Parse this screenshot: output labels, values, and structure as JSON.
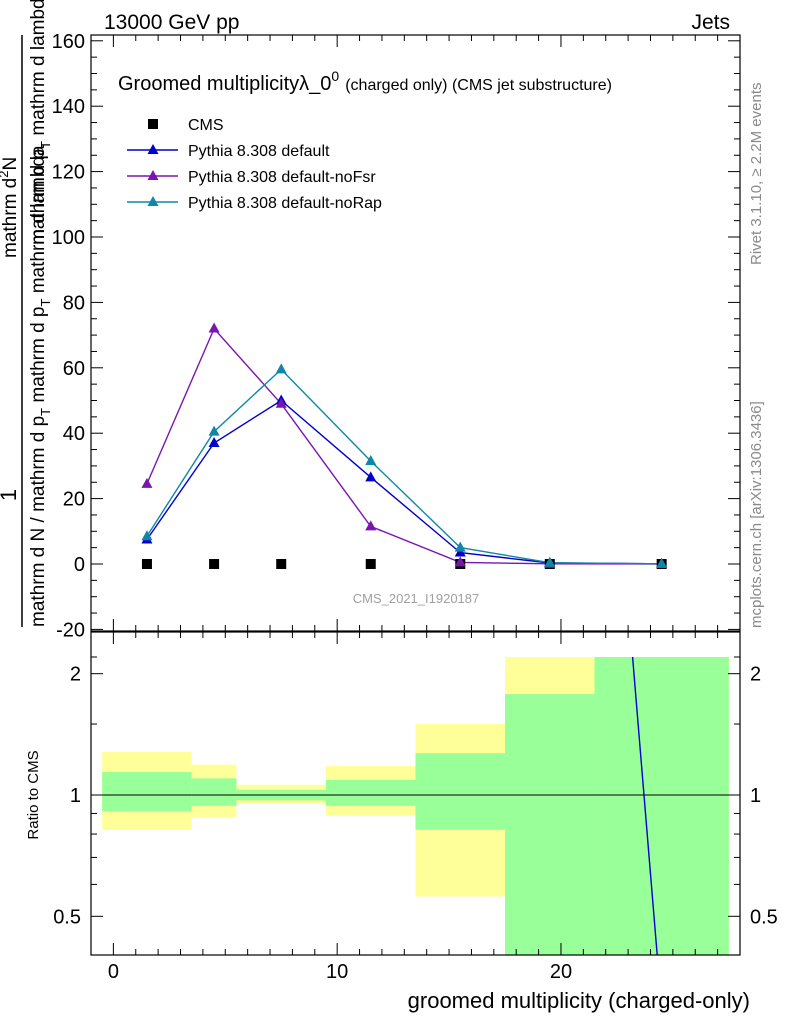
{
  "header": {
    "energy": "13000 GeV pp",
    "category": "Jets"
  },
  "side_labels": {
    "rivet": "Rivet 3.1.10, ≥ 2.2M events",
    "mcplots": "mcplots.cern.ch [arXiv:1306.3436]"
  },
  "watermark": "CMS_2021_I1920187",
  "chart_data": [
    {
      "type": "line",
      "title_main": "Groomed multiplicityλ_0",
      "title_sup": "0",
      "title_suffix": "(charged only) (CMS jet substructure)",
      "ylabel_num": "1",
      "ylabel_num2": "mathrm d",
      "ylabel_num2_sup": "2",
      "ylabel_num3": "N",
      "ylabel_den_top": "mathrm d p",
      "ylabel_den_top_sub": "T",
      "ylabel_den_top2": " mathrm d lambda",
      "ylabel_frac_den": "mathrm d N / mathrm d p",
      "ylabel_frac_den_sub": "T",
      "ylabel_frac_den2": " mathrm d p",
      "ylabel_frac_den2_sub": "T",
      "ylabel_frac_den3": " mathrm d lambda",
      "xlim": [
        -1,
        28
      ],
      "ylim": [
        -20,
        162
      ],
      "yticks": [
        -20,
        0,
        20,
        40,
        60,
        80,
        100,
        120,
        140,
        160
      ],
      "legend_position": "top-left",
      "series": [
        {
          "name": "CMS",
          "kind": "data",
          "color": "#000000",
          "points": [
            [
              1.5,
              0
            ],
            [
              4.5,
              0
            ],
            [
              7.5,
              0
            ],
            [
              11.5,
              0
            ],
            [
              15.5,
              0
            ],
            [
              19.5,
              0
            ],
            [
              24.5,
              0
            ]
          ]
        },
        {
          "name": "Pythia 8.308 default",
          "color": "#0000cc",
          "points": [
            [
              1.5,
              7.5
            ],
            [
              4.5,
              37
            ],
            [
              7.5,
              50
            ],
            [
              11.5,
              26.5
            ],
            [
              15.5,
              3.5
            ],
            [
              19.5,
              0.3
            ],
            [
              24.5,
              0.05
            ]
          ]
        },
        {
          "name": "Pythia 8.308 default-noFsr",
          "color": "#7a16b0",
          "points": [
            [
              1.5,
              24.5
            ],
            [
              4.5,
              72
            ],
            [
              7.5,
              49
            ],
            [
              11.5,
              11.5
            ],
            [
              15.5,
              0.5
            ],
            [
              19.5,
              0.05
            ],
            [
              24.5,
              0.01
            ]
          ]
        },
        {
          "name": "Pythia 8.308 default-noRap",
          "color": "#0f87a8",
          "points": [
            [
              1.5,
              8.5
            ],
            [
              4.5,
              40.5
            ],
            [
              7.5,
              59.5
            ],
            [
              11.5,
              31.5
            ],
            [
              15.5,
              5
            ],
            [
              19.5,
              0.4
            ],
            [
              24.5,
              0.05
            ]
          ]
        }
      ]
    },
    {
      "type": "ratio",
      "ylabel": "Ratio to CMS",
      "xlabel": "groomed multiplicity (charged-only)",
      "xlim": [
        -1,
        28
      ],
      "ylim": [
        0.35,
        2.2
      ],
      "log_y": true,
      "yticks": [
        0.5,
        1,
        2
      ],
      "ytick_labels": [
        "0.5",
        "1",
        "2"
      ],
      "xticks": [
        0,
        10,
        20
      ],
      "xtick_labels": [
        "0",
        "10",
        "20"
      ],
      "colors": {
        "stat": "#99ff99",
        "total": "#ffff99"
      },
      "bands": [
        {
          "xlo": -0.5,
          "xhi": 3.5,
          "total": [
            0.82,
            1.28
          ],
          "stat": [
            0.91,
            1.14
          ]
        },
        {
          "xlo": 3.5,
          "xhi": 5.5,
          "total": [
            0.88,
            1.19
          ],
          "stat": [
            0.94,
            1.1
          ]
        },
        {
          "xlo": 5.5,
          "xhi": 9.5,
          "total": [
            0.95,
            1.06
          ],
          "stat": [
            0.97,
            1.03
          ]
        },
        {
          "xlo": 9.5,
          "xhi": 13.5,
          "total": [
            0.89,
            1.18
          ],
          "stat": [
            0.94,
            1.09
          ]
        },
        {
          "xlo": 13.5,
          "xhi": 17.5,
          "total": [
            0.56,
            1.5
          ],
          "stat": [
            0.82,
            1.27
          ]
        },
        {
          "xlo": 17.5,
          "xhi": 21.5,
          "total": [
            0.35,
            2.2
          ],
          "stat": [
            0.35,
            1.78
          ]
        },
        {
          "xlo": 21.5,
          "xhi": 27.5,
          "total": [
            0.35,
            2.2
          ],
          "stat": [
            0.35,
            2.2
          ]
        }
      ],
      "ratio_line": {
        "color": "#0000cc",
        "points": [
          [
            23.2,
            2.2
          ],
          [
            24.3,
            0.37
          ]
        ]
      }
    }
  ]
}
